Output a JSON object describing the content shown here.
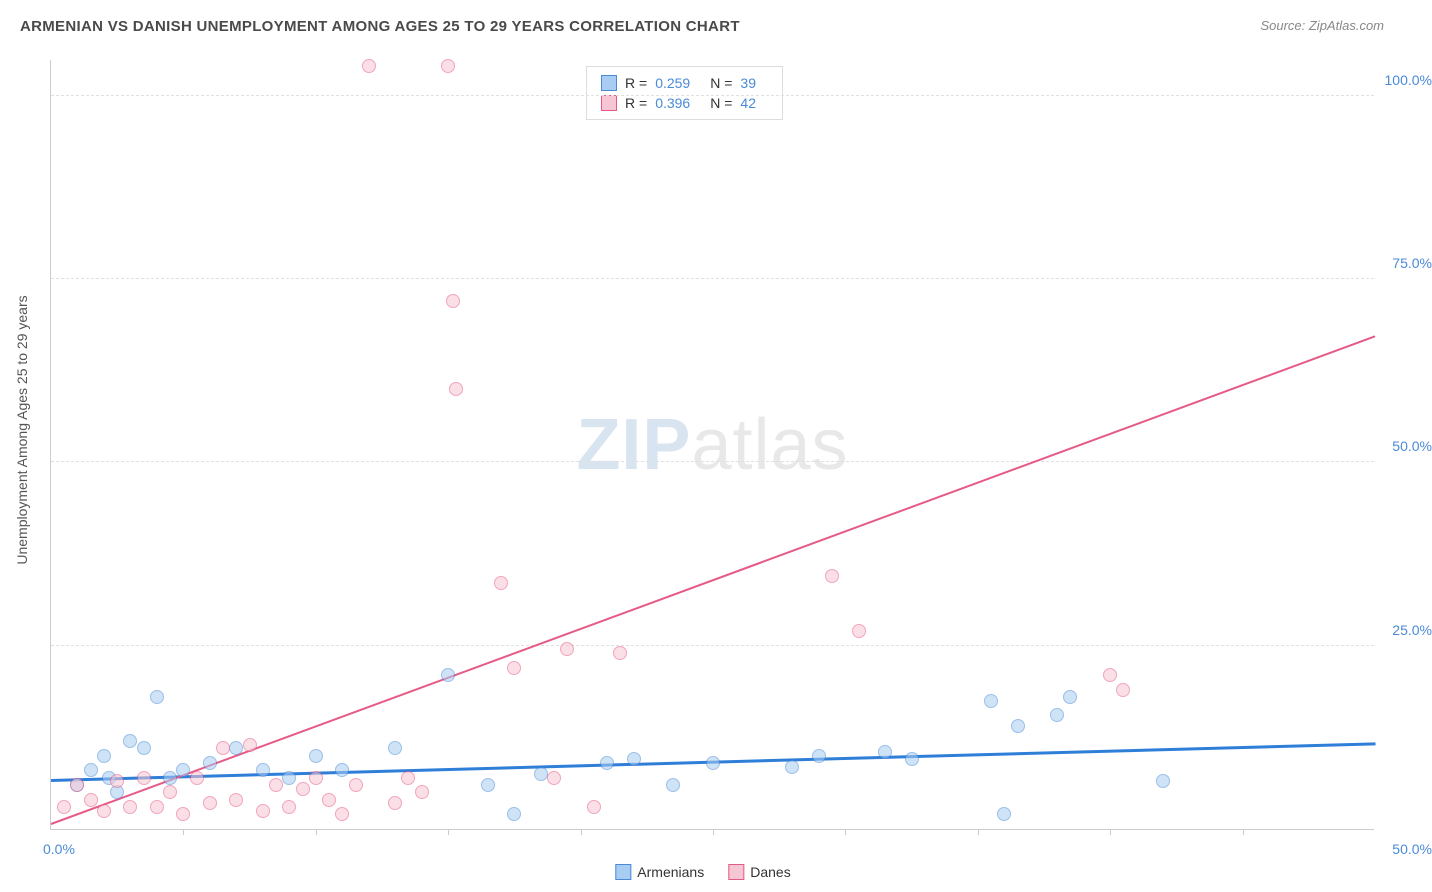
{
  "title": "ARMENIAN VS DANISH UNEMPLOYMENT AMONG AGES 25 TO 29 YEARS CORRELATION CHART",
  "source": "Source: ZipAtlas.com",
  "y_axis_label": "Unemployment Among Ages 25 to 29 years",
  "watermark": {
    "part1": "ZIP",
    "part2": "atlas"
  },
  "chart": {
    "type": "scatter",
    "background_color": "#ffffff",
    "grid_color": "#e0e0e0",
    "axis_color": "#cccccc",
    "xlim": [
      0,
      50
    ],
    "ylim": [
      0,
      105
    ],
    "x_tick_step": 5,
    "y_ticks": [
      25,
      50,
      75,
      100
    ],
    "y_tick_labels": [
      "25.0%",
      "50.0%",
      "75.0%",
      "100.0%"
    ],
    "x_min_label": "0.0%",
    "x_max_label": "50.0%",
    "tick_label_color": "#4a8ad8",
    "tick_label_fontsize": 14,
    "marker_radius": 7,
    "marker_opacity": 0.55,
    "series": [
      {
        "name": "Armenians",
        "color_fill": "#a9cdf2",
        "color_stroke": "#4a8ad8",
        "R": "0.259",
        "N": "39",
        "trend": {
          "x1": 0,
          "y1": 6.5,
          "x2": 50,
          "y2": 11.5,
          "color": "#2f7ed8",
          "width": 2.5
        },
        "points": [
          [
            1.0,
            6.0
          ],
          [
            1.5,
            8.0
          ],
          [
            2.0,
            10.0
          ],
          [
            2.2,
            7.0
          ],
          [
            2.5,
            5.0
          ],
          [
            3.0,
            12.0
          ],
          [
            3.5,
            11.0
          ],
          [
            4.0,
            18.0
          ],
          [
            4.5,
            7.0
          ],
          [
            5.0,
            8.0
          ],
          [
            6.0,
            9.0
          ],
          [
            7.0,
            11.0
          ],
          [
            8.0,
            8.0
          ],
          [
            9.0,
            7.0
          ],
          [
            10.0,
            10.0
          ],
          [
            11.0,
            8.0
          ],
          [
            13.0,
            11.0
          ],
          [
            15.0,
            21.0
          ],
          [
            16.5,
            6.0
          ],
          [
            17.5,
            2.0
          ],
          [
            18.5,
            7.5
          ],
          [
            21.0,
            9.0
          ],
          [
            22.0,
            9.5
          ],
          [
            23.5,
            6.0
          ],
          [
            25.0,
            9.0
          ],
          [
            28.0,
            8.5
          ],
          [
            29.0,
            10.0
          ],
          [
            31.5,
            10.5
          ],
          [
            32.5,
            9.5
          ],
          [
            35.5,
            17.5
          ],
          [
            36.5,
            14.0
          ],
          [
            36.0,
            2.0
          ],
          [
            38.0,
            15.5
          ],
          [
            38.5,
            18.0
          ],
          [
            42.0,
            6.5
          ]
        ]
      },
      {
        "name": "Danes",
        "color_fill": "#f7c6d4",
        "color_stroke": "#e65b86",
        "R": "0.396",
        "N": "42",
        "trend": {
          "x1": 0,
          "y1": 0.5,
          "x2": 50,
          "y2": 67.0,
          "color": "#e65b86",
          "width": 2
        },
        "points": [
          [
            0.5,
            3.0
          ],
          [
            1.0,
            6.0
          ],
          [
            1.5,
            4.0
          ],
          [
            2.0,
            2.5
          ],
          [
            2.5,
            6.5
          ],
          [
            3.0,
            3.0
          ],
          [
            3.5,
            7.0
          ],
          [
            4.0,
            3.0
          ],
          [
            4.5,
            5.0
          ],
          [
            5.0,
            2.0
          ],
          [
            5.5,
            7.0
          ],
          [
            6.0,
            3.5
          ],
          [
            6.5,
            11.0
          ],
          [
            7.0,
            4.0
          ],
          [
            7.5,
            11.5
          ],
          [
            8.0,
            2.5
          ],
          [
            8.5,
            6.0
          ],
          [
            9.0,
            3.0
          ],
          [
            9.5,
            5.5
          ],
          [
            10.0,
            7.0
          ],
          [
            10.5,
            4.0
          ],
          [
            11.0,
            2.0
          ],
          [
            11.5,
            6.0
          ],
          [
            12.0,
            104.0
          ],
          [
            13.0,
            3.5
          ],
          [
            13.5,
            7.0
          ],
          [
            14.0,
            5.0
          ],
          [
            15.0,
            104.0
          ],
          [
            15.2,
            72.0
          ],
          [
            15.3,
            60.0
          ],
          [
            17.0,
            33.5
          ],
          [
            17.5,
            22.0
          ],
          [
            19.0,
            7.0
          ],
          [
            19.5,
            24.5
          ],
          [
            20.5,
            3.0
          ],
          [
            21.5,
            24.0
          ],
          [
            29.5,
            34.5
          ],
          [
            30.5,
            27.0
          ],
          [
            40.0,
            21.0
          ],
          [
            40.5,
            19.0
          ]
        ]
      }
    ]
  },
  "stats_legend": {
    "label_R": "R =",
    "label_N": "N ="
  },
  "bottom_legend": {
    "items": [
      "Armenians",
      "Danes"
    ]
  }
}
